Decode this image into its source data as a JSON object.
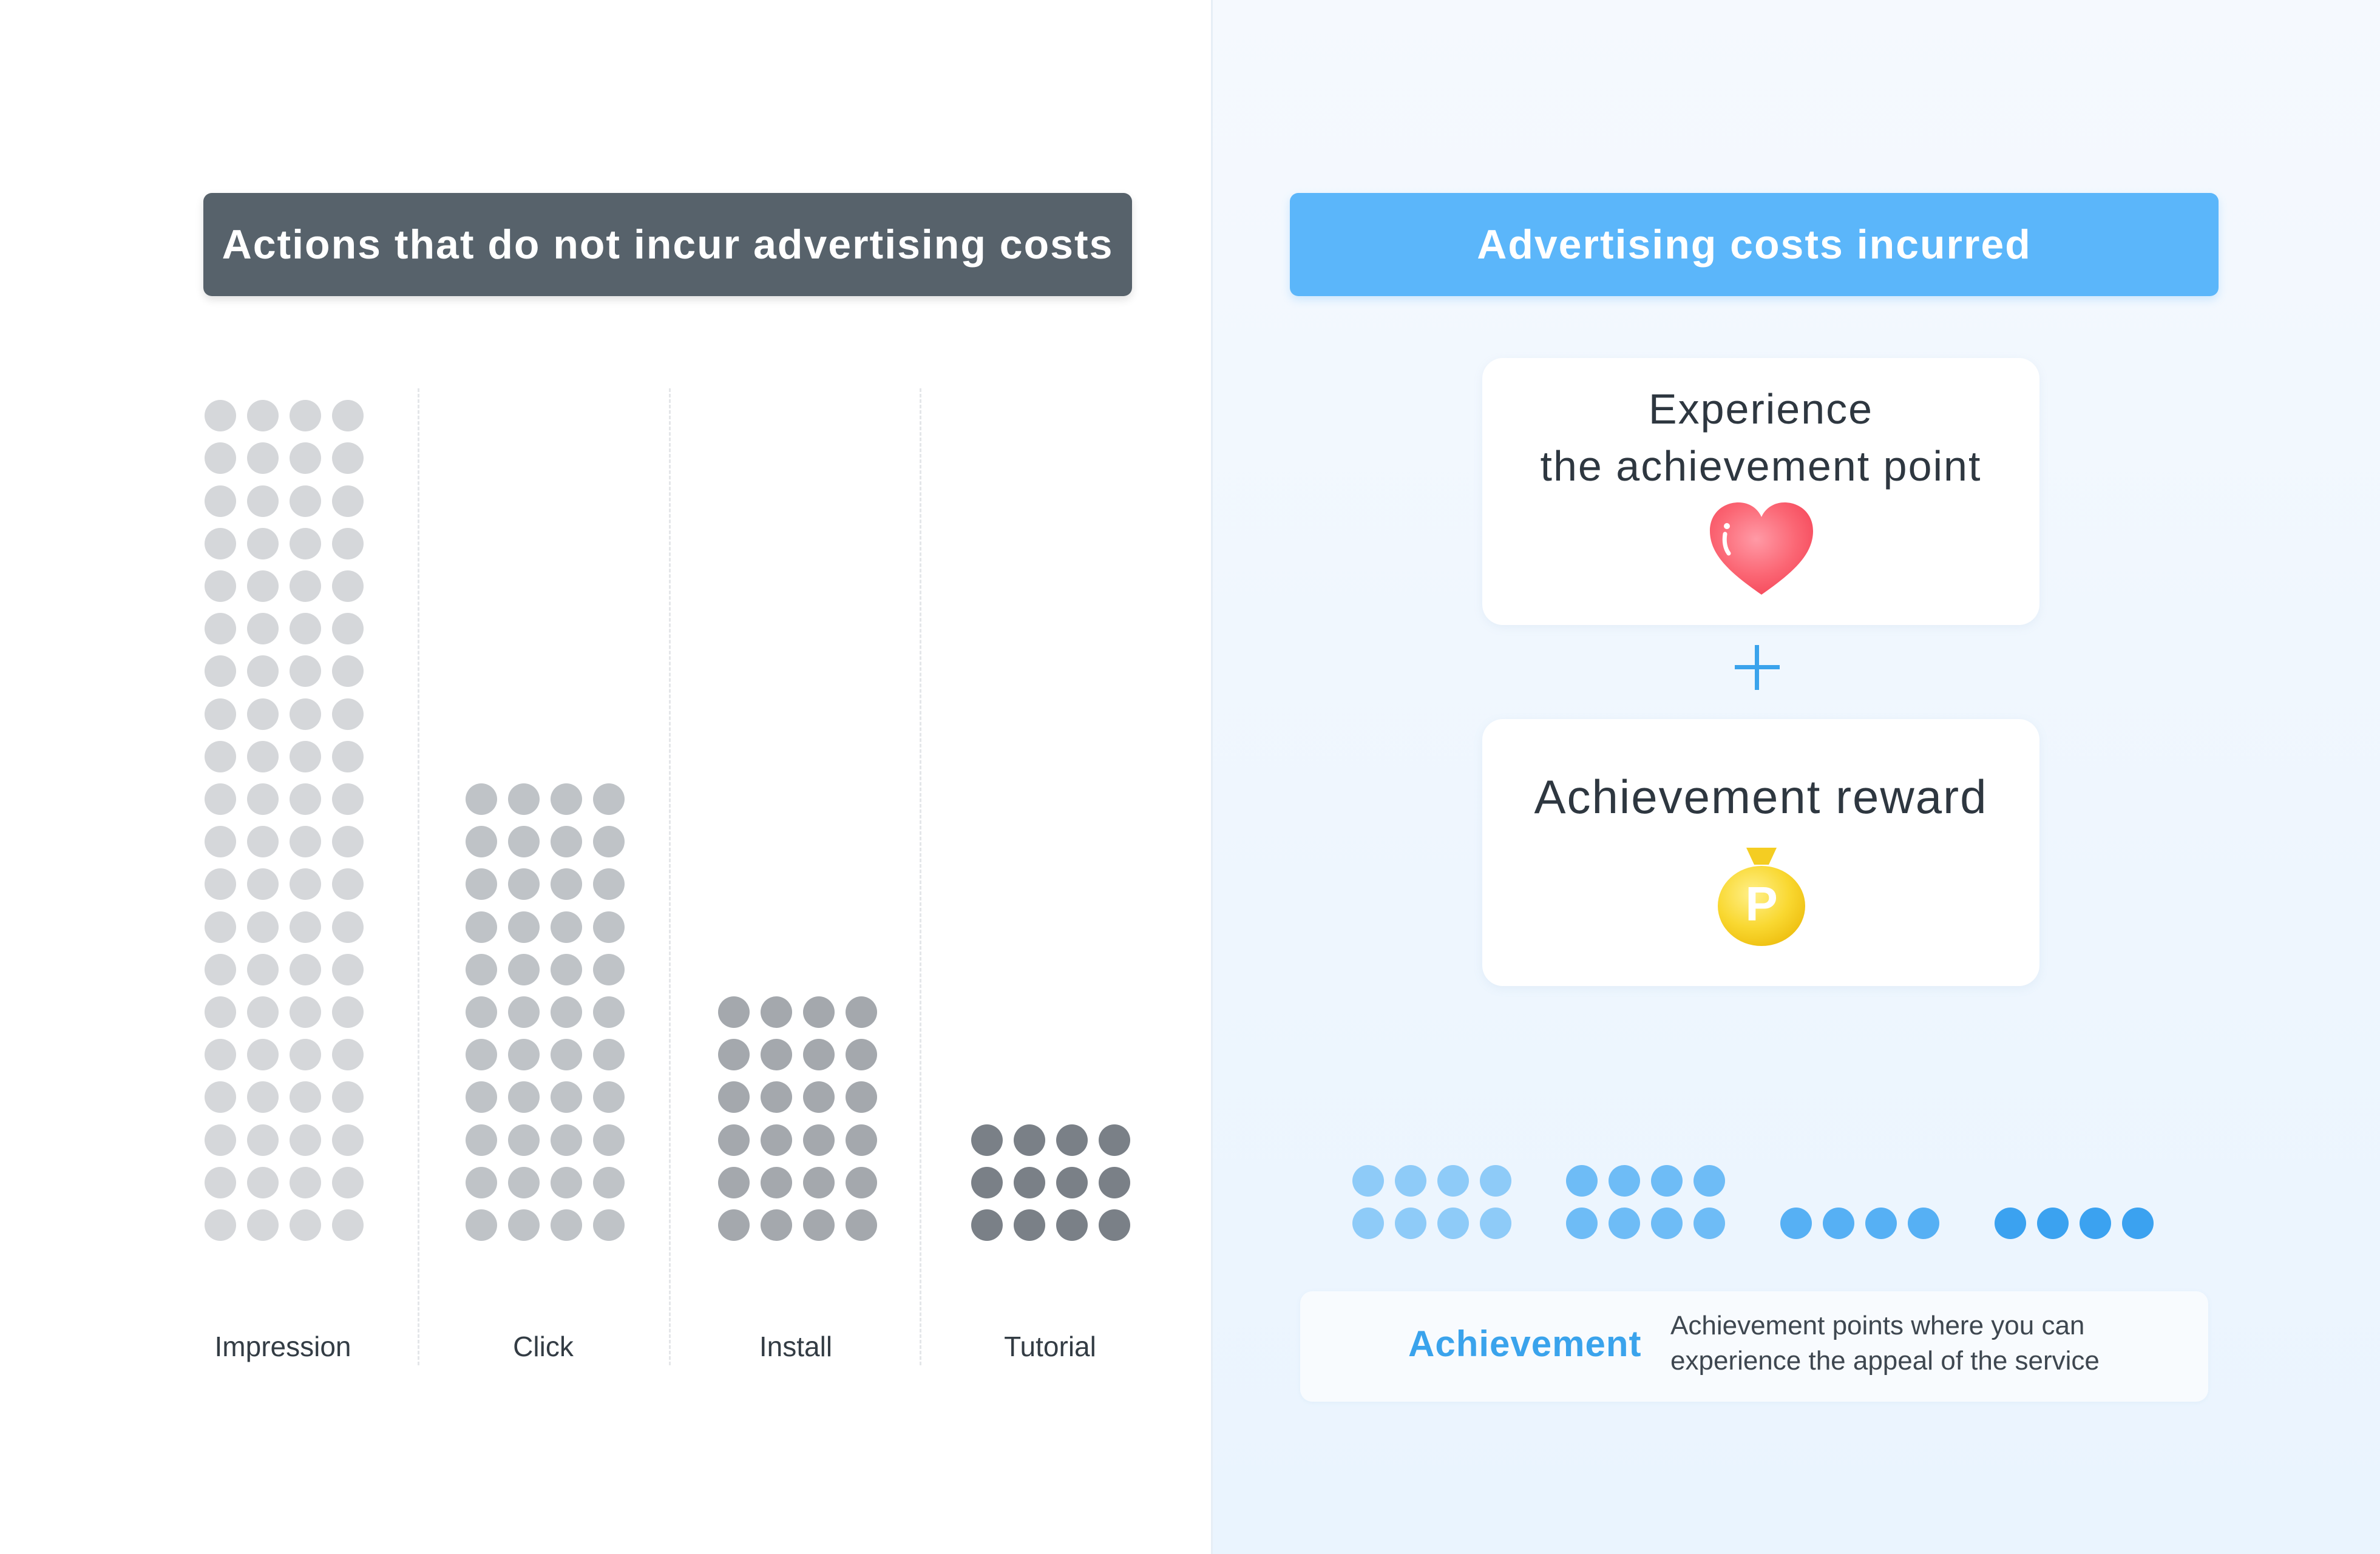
{
  "left_header": {
    "title": "Actions that do not incur advertising costs"
  },
  "right_header": {
    "title": "Advertising costs incurred"
  },
  "columns": [
    {
      "label": "Impression",
      "rows": 20,
      "dot_color": "#d5d7da"
    },
    {
      "label": "Click",
      "rows": 11,
      "dot_color": "#bfc3c7"
    },
    {
      "label": "Install",
      "rows": 6,
      "dot_color": "#a4a8ad"
    },
    {
      "label": "Tutorial",
      "rows": 3,
      "dot_color": "#7a8087"
    }
  ],
  "card_experience": {
    "line1": "Experience",
    "line2": "the achievement point",
    "icon": "heart-icon"
  },
  "plus_icon": "plus-icon",
  "card_reward": {
    "title": "Achievement reward",
    "icon": "coin-bag-icon",
    "coin_letter": "P"
  },
  "achievement_groups": [
    {
      "rows": 2,
      "color": "#8ecbf8"
    },
    {
      "rows": 2,
      "color": "#6ebcf6"
    },
    {
      "rows": 1,
      "color": "#56b0f4"
    },
    {
      "rows": 1,
      "color": "#3ba2f0"
    }
  ],
  "legend": {
    "title": "Achievement",
    "description_line1": "Achievement points where you can",
    "description_line2": "experience the appeal of the service"
  },
  "colors": {
    "dark_header": "#57626b",
    "blue_header": "#5bb6fa",
    "accent_blue": "#3aa3ec"
  }
}
